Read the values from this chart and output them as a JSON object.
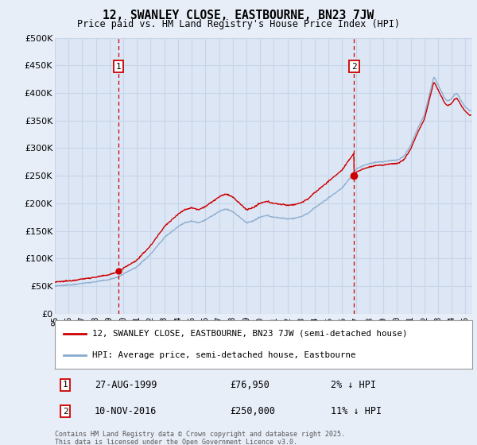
{
  "title": "12, SWANLEY CLOSE, EASTBOURNE, BN23 7JW",
  "subtitle": "Price paid vs. HM Land Registry's House Price Index (HPI)",
  "background_color": "#e8eef8",
  "plot_bg_color": "#dce6f5",
  "grid_color": "#c8d4e8",
  "ylim": [
    0,
    500000
  ],
  "yticks": [
    0,
    50000,
    100000,
    150000,
    200000,
    250000,
    300000,
    350000,
    400000,
    450000,
    500000
  ],
  "xlim_start": 1995.0,
  "xlim_end": 2025.5,
  "sale1_x": 1999.65,
  "sale1_y": 76950,
  "sale1_label": "1",
  "sale1_date": "27-AUG-1999",
  "sale1_price": "£76,950",
  "sale1_hpi": "2% ↓ HPI",
  "sale2_x": 2016.87,
  "sale2_y": 250000,
  "sale2_label": "2",
  "sale2_date": "10-NOV-2016",
  "sale2_price": "£250,000",
  "sale2_hpi": "11% ↓ HPI",
  "line1_color": "#cc0000",
  "line2_color": "#88aacc",
  "line1_label": "12, SWANLEY CLOSE, EASTBOURNE, BN23 7JW (semi-detached house)",
  "line2_label": "HPI: Average price, semi-detached house, Eastbourne",
  "footer": "Contains HM Land Registry data © Crown copyright and database right 2025.\nThis data is licensed under the Open Government Licence v3.0."
}
